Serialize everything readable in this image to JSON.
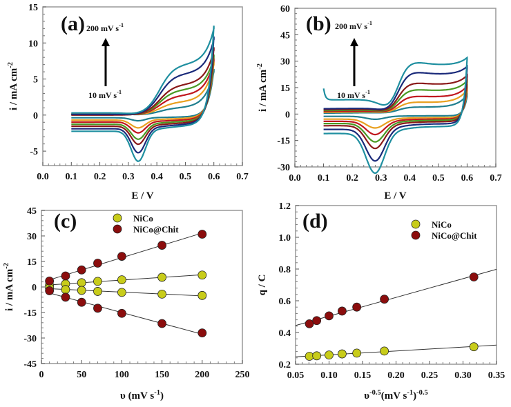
{
  "chart_data": [
    {
      "panel": "(a)",
      "type": "line",
      "xlabel": "E / V",
      "ylabel": {
        "main": "i / mA cm",
        "sup": "-2"
      },
      "xlim": [
        0,
        0.7
      ],
      "ylim": [
        -7,
        15
      ],
      "xticks": [
        0.0,
        0.1,
        0.2,
        0.3,
        0.4,
        0.5,
        0.6,
        0.7
      ],
      "yticks": [
        -5,
        0,
        5,
        10,
        15
      ],
      "annotation_top": {
        "main": "200 mV s",
        "sup": "-1"
      },
      "annotation_bottom": {
        "main": "10 mV s",
        "sup": "-1"
      },
      "scan_rates_mV_s": [
        10,
        30,
        50,
        70,
        100,
        150,
        200
      ],
      "colors": [
        "#1f7f8f",
        "#e8a020",
        "#c0161e",
        "#4a9a24",
        "#8b1a1a",
        "#1a2a7a",
        "#1f8fa0"
      ],
      "potential_window_V": [
        0.1,
        0.6
      ],
      "anodic_peak_E": 0.45,
      "cathodic_peak_E": 0.335,
      "anodic_plateau_i": [
        1.0,
        1.8,
        2.7,
        3.5,
        4.2,
        5.7,
        7.0
      ],
      "cathodic_peak_i": [
        -0.5,
        -1.3,
        -1.8,
        -2.5,
        -3.0,
        -4.0,
        -5.0
      ],
      "vertex_i": [
        6.0,
        7.0,
        7.5,
        8.0,
        9.0,
        10.5,
        12.0
      ],
      "start_i_forward": [
        0.2,
        0.15,
        0.1,
        0.05,
        0.0,
        0.1,
        0.3
      ],
      "start_i_reverse": [
        -0.3,
        -0.5,
        -0.7,
        -0.9,
        -1.1,
        -1.3,
        -1.5
      ]
    },
    {
      "panel": "(b)",
      "type": "line",
      "xlabel": "E / V",
      "ylabel": {
        "main": "i / mA cm",
        "sup": "-2"
      },
      "xlim": [
        0,
        0.7
      ],
      "ylim": [
        -30,
        60
      ],
      "xticks": [
        0.0,
        0.1,
        0.2,
        0.3,
        0.4,
        0.5,
        0.6,
        0.7
      ],
      "yticks": [
        -30,
        -15,
        0,
        15,
        30,
        45,
        60
      ],
      "annotation_top": {
        "main": "200 mV s",
        "sup": "-1"
      },
      "annotation_bottom": {
        "main": "10 mV s",
        "sup": "-1"
      },
      "scan_rates_mV_s": [
        10,
        30,
        50,
        70,
        100,
        150,
        200
      ],
      "colors": [
        "#1f7f8f",
        "#e8a020",
        "#c0161e",
        "#4a9a24",
        "#8b1a1a",
        "#1a2a7a",
        "#1f8fa0"
      ],
      "potential_window_V": [
        0.1,
        0.6
      ],
      "anodic_peak_E": 0.41,
      "cathodic_peak_E": 0.28,
      "anodic_plateau_i": [
        3.5,
        6.5,
        10.0,
        14.0,
        18.0,
        24.5,
        30.5
      ],
      "cathodic_peak_i": [
        -2.0,
        -6.0,
        -9.0,
        -12.5,
        -15.5,
        -21.5,
        -27.0
      ],
      "vertex_i": [
        10.0,
        13.0,
        15.0,
        18.0,
        21.0,
        26.0,
        31.0
      ],
      "start_i_forward": [
        0.5,
        1.0,
        1.5,
        2.0,
        2.5,
        3.0,
        8.0
      ],
      "start_i_reverse": [
        -1.0,
        -2.0,
        -2.8,
        -3.5,
        -4.3,
        -5.5,
        -7.0
      ]
    },
    {
      "panel": "(c)",
      "type": "scatter",
      "xlabel": {
        "main": "υ (mV s",
        "sup": "-1",
        "tail": ")"
      },
      "ylabel": {
        "main": "i / mA cm",
        "sup": "-2"
      },
      "xlim": [
        0,
        250
      ],
      "ylim": [
        -45,
        45
      ],
      "xticks": [
        0,
        50,
        100,
        150,
        200,
        250
      ],
      "yticks": [
        -45,
        -30,
        -15,
        0,
        15,
        30,
        45
      ],
      "legend": "top-center",
      "fit_lines": true,
      "x": [
        10,
        30,
        50,
        70,
        100,
        150,
        200
      ],
      "series": [
        {
          "name": "NiCo",
          "color": "#c8cc1a",
          "values": [
            1.0,
            1.8,
            2.5,
            3.3,
            4.2,
            5.7,
            7.0
          ]
        },
        {
          "name": "NiCo",
          "color": "#c8cc1a",
          "values": [
            -0.6,
            -1.5,
            -2.0,
            -2.6,
            -3.2,
            -4.2,
            -5.0
          ],
          "legend": false
        },
        {
          "name": "NiCo@Chit",
          "color": "#8b0d0d",
          "values": [
            3.5,
            6.5,
            10.0,
            14.0,
            18.0,
            24.5,
            31.0
          ]
        },
        {
          "name": "NiCo@Chit",
          "color": "#8b0d0d",
          "values": [
            -2.2,
            -6.0,
            -9.0,
            -12.5,
            -15.5,
            -21.5,
            -27.0
          ],
          "legend": false
        }
      ]
    },
    {
      "panel": "(d)",
      "type": "scatter",
      "xlabel": {
        "pre": "υ",
        "presup": "-0.5",
        "main": "(mV s",
        "sup": "-1",
        "tail": ")",
        "tailsup": "-0.5"
      },
      "ylabel": {
        "main": "q / C"
      },
      "xlim": [
        0.05,
        0.35
      ],
      "ylim": [
        0.2,
        1.2
      ],
      "xticks": [
        0.05,
        0.1,
        0.15,
        0.2,
        0.25,
        0.3,
        0.35
      ],
      "yticks": [
        0.2,
        0.4,
        0.6,
        0.8,
        1.0,
        1.2
      ],
      "legend": "top-right",
      "fit_lines": true,
      "x": [
        0.0707,
        0.0816,
        0.1,
        0.1195,
        0.1414,
        0.1826,
        0.3162
      ],
      "series": [
        {
          "name": "NiCo",
          "color": "#c8cc1a",
          "values": [
            0.25,
            0.253,
            0.258,
            0.265,
            0.27,
            0.283,
            0.31
          ]
        },
        {
          "name": "NiCo@Chit",
          "color": "#8b0d0d",
          "values": [
            0.455,
            0.475,
            0.505,
            0.535,
            0.56,
            0.61,
            0.75
          ]
        }
      ]
    }
  ]
}
